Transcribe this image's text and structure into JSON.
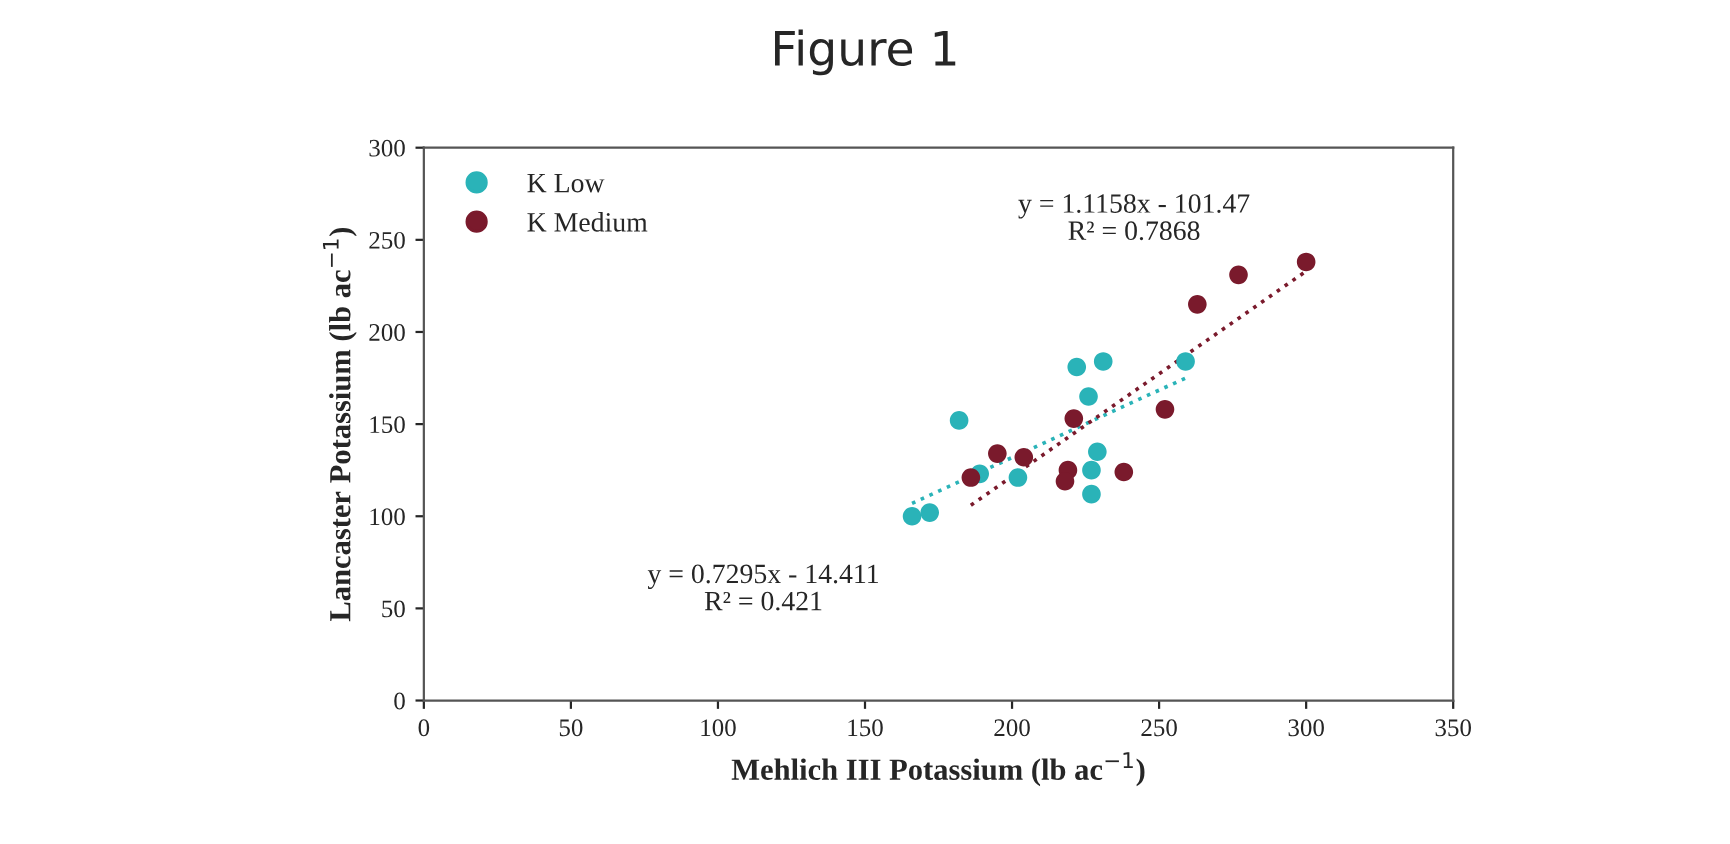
{
  "chart_data": {
    "type": "scatter",
    "title": "Figure 1",
    "xlabel": "Mehlich III Potassium (lb ac$^{−1}$)",
    "ylabel": "Lancaster Potassium (lb ac$^{−1}$)",
    "series": [
      {
        "name": "K Low",
        "color": "#2ab3b8",
        "marker": "circle",
        "x": [
          182,
          166,
          172,
          222,
          231,
          226,
          229,
          227,
          227,
          202,
          189,
          259
        ],
        "values": [
          152,
          100,
          102,
          181,
          184,
          165,
          135,
          125,
          112,
          121,
          123,
          184
        ]
      },
      {
        "name": "K Medium",
        "color": "#7a1a2c",
        "marker": "circle",
        "x": [
          300,
          277,
          263,
          221,
          252,
          195,
          204,
          186,
          219,
          218,
          238
        ],
        "values": [
          238,
          231,
          215,
          153,
          158,
          134,
          132,
          121,
          125,
          119,
          124
        ]
      },
      {
        "type": "line",
        "line_style": "dotted",
        "marker": "none",
        "color": "#2ab3b8",
        "x": [
          166,
          259
        ],
        "values": [
          107,
          175
        ]
      },
      {
        "type": "line",
        "line_style": "dotted",
        "marker": "none",
        "color": "#7a1a2c",
        "x": [
          186,
          300
        ],
        "values": [
          106,
          233
        ]
      }
    ],
    "xlim": [
      0,
      350
    ],
    "xticks": [
      0,
      50,
      100,
      150,
      200,
      250,
      300,
      350
    ],
    "ylim": [
      0,
      300
    ],
    "yticks": [
      0,
      50,
      100,
      150,
      200,
      250,
      300
    ],
    "legend": "top left",
    "grid": false,
    "annotations": [
      "y = 1.1158x - 101.47\nR² = 0.7868",
      "y = 0.7295x - 14.411\nR² = 0.421"
    ]
  }
}
